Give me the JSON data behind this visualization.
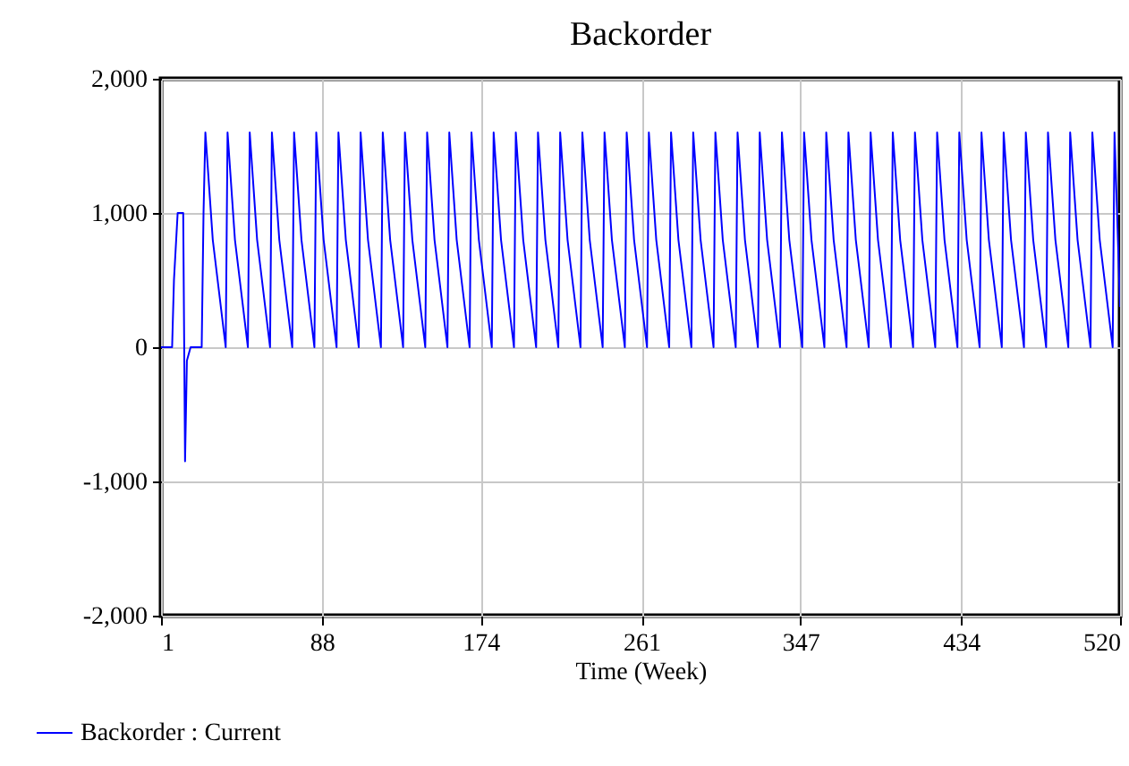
{
  "chart_data": {
    "type": "line",
    "title": "Backorder",
    "xlabel": "Time (Week)",
    "x": [
      1,
      7,
      8,
      10,
      13,
      14,
      15,
      17,
      23,
      24,
      25,
      29,
      36,
      37,
      41,
      48,
      49,
      53,
      60,
      61,
      65,
      72,
      73,
      77,
      84,
      85,
      89,
      96,
      97,
      101,
      108,
      109,
      113,
      120,
      121,
      125,
      132,
      133,
      137,
      144,
      145,
      149,
      156,
      157,
      161,
      168,
      169,
      173,
      180,
      181,
      185,
      192,
      193,
      197,
      204,
      205,
      209,
      216,
      217,
      221,
      228,
      229,
      233,
      240,
      241,
      245,
      252,
      253,
      257,
      264,
      265,
      269,
      276,
      277,
      281,
      288,
      289,
      293,
      300,
      301,
      305,
      312,
      313,
      317,
      324,
      325,
      329,
      336,
      337,
      341,
      348,
      349,
      353,
      360,
      361,
      365,
      372,
      373,
      377,
      384,
      385,
      389,
      396,
      397,
      401,
      408,
      409,
      413,
      420,
      421,
      425,
      432,
      433,
      437,
      444,
      445,
      449,
      456,
      457,
      461,
      468,
      469,
      473,
      480,
      481,
      485,
      492,
      493,
      497,
      504,
      505,
      509,
      516,
      517,
      520
    ],
    "series": [
      {
        "name": "Backorder : Current",
        "color": "#0000ff",
        "values": [
          0,
          0,
          500,
          1000,
          1000,
          -850,
          -100,
          0,
          0,
          1000,
          1600,
          800,
          0,
          1600,
          800,
          0,
          1600,
          800,
          0,
          1600,
          800,
          0,
          1600,
          800,
          0,
          1600,
          800,
          0,
          1600,
          800,
          0,
          1600,
          800,
          0,
          1600,
          800,
          0,
          1600,
          800,
          0,
          1600,
          800,
          0,
          1600,
          800,
          0,
          1600,
          800,
          0,
          1600,
          800,
          0,
          1600,
          800,
          0,
          1600,
          800,
          0,
          1600,
          800,
          0,
          1600,
          800,
          0,
          1600,
          800,
          0,
          1600,
          800,
          0,
          1600,
          800,
          0,
          1600,
          800,
          0,
          1600,
          800,
          0,
          1600,
          800,
          0,
          1600,
          800,
          0,
          1600,
          800,
          0,
          1600,
          800,
          0,
          1600,
          800,
          0,
          1600,
          800,
          0,
          1600,
          800,
          0,
          1600,
          800,
          0,
          1600,
          800,
          0,
          1600,
          800,
          0,
          1600,
          800,
          0,
          1600,
          800,
          0,
          1600,
          800,
          0,
          1600,
          800,
          0,
          1600,
          800,
          0,
          1600,
          800,
          0,
          1600,
          800,
          0,
          1600,
          800,
          0,
          1600,
          300
        ]
      }
    ],
    "xlim": [
      1,
      520
    ],
    "xticks": [
      1,
      88,
      174,
      261,
      347,
      434,
      520
    ],
    "ylim": [
      -2000,
      2000
    ],
    "yticks": [
      {
        "value": -2000,
        "label": "-2,000"
      },
      {
        "value": -1000,
        "label": "-1,000"
      },
      0,
      {
        "value": 1000,
        "label": "1,000"
      },
      {
        "value": 2000,
        "label": "2,000"
      }
    ],
    "grid": true,
    "legend": "bottom left",
    "line_style": "solid"
  }
}
